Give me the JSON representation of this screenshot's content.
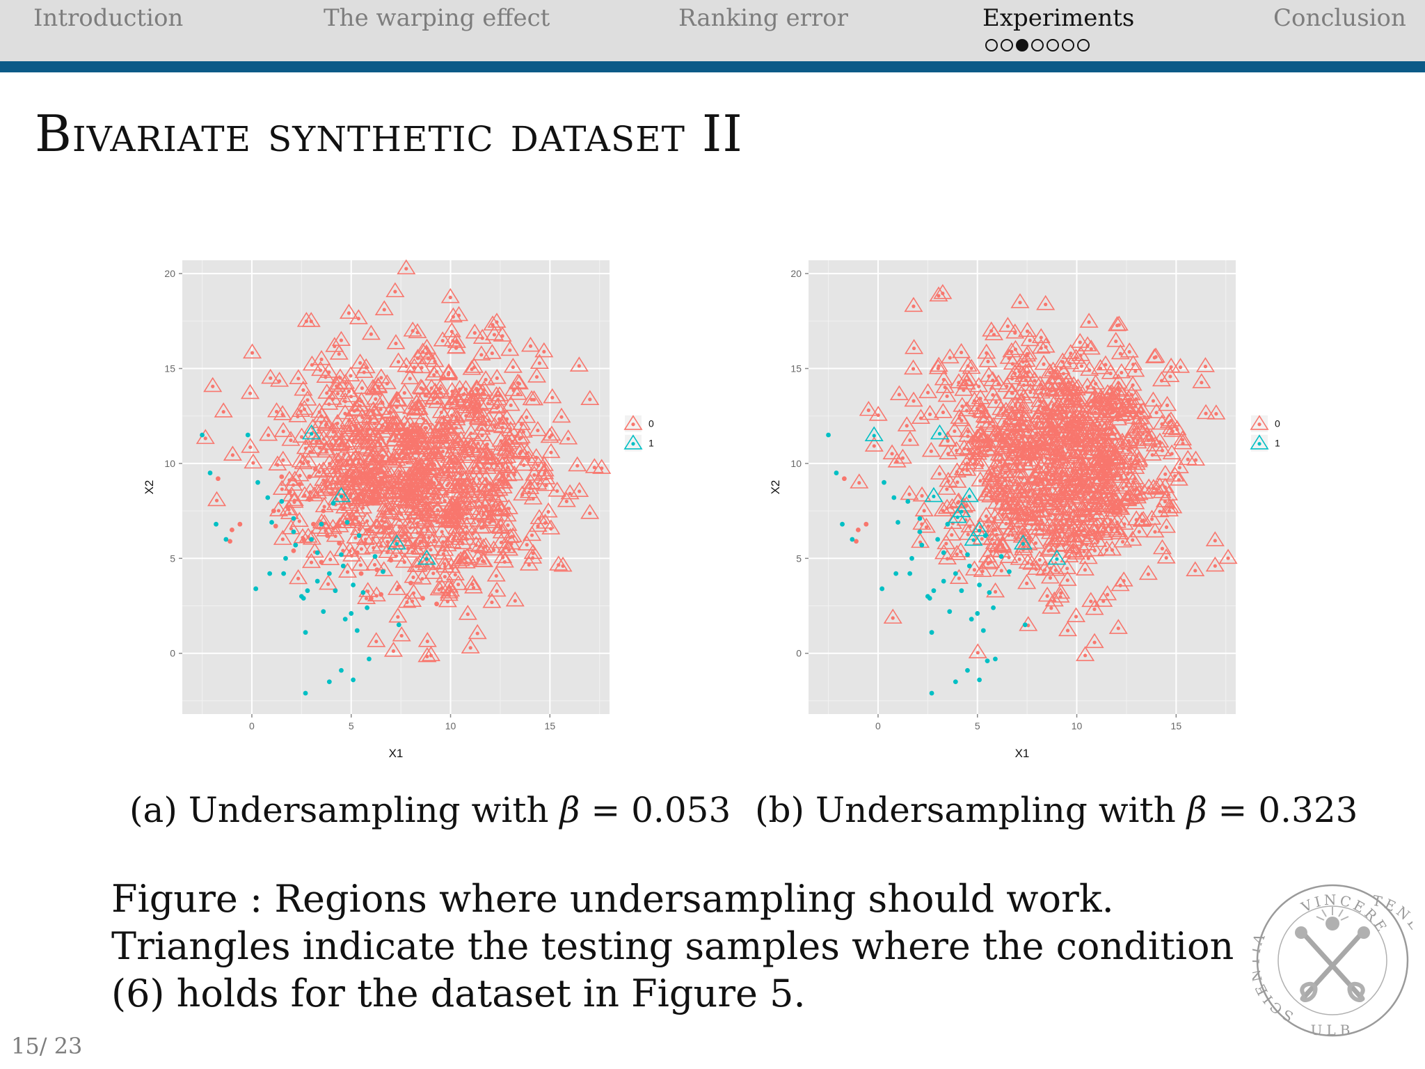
{
  "nav": {
    "items": [
      {
        "label": "Introduction"
      },
      {
        "label": "The warping effect"
      },
      {
        "label": "Ranking error"
      },
      {
        "label": "Experiments",
        "active": true
      },
      {
        "label": "Conclusion"
      }
    ],
    "progress": {
      "total": 7,
      "current": 3
    },
    "accent_color": "#0b5a87"
  },
  "slide": {
    "title": "Bivariate synthetic dataset II",
    "subfigure_a": {
      "prefix": "(a)",
      "text": "Undersampling with ",
      "symbol": "β",
      "value": " = 0.053"
    },
    "subfigure_b": {
      "prefix": "(b)",
      "text": "Undersampling with ",
      "symbol": "β",
      "value": " = 0.323"
    },
    "figure_caption": "Figure : Regions where undersampling should work. Triangles indicate the testing samples where the condition (6) holds for the dataset in Figure 5.",
    "page_number": "15/ 23"
  },
  "seal": {
    "text_top": "VINCERE",
    "text_right": "TENEBRAS",
    "text_left": "SCIENTIA",
    "text_bottom": "ULB"
  },
  "chart_data": [
    {
      "type": "scatter",
      "xlabel": "X1",
      "ylabel": "X2",
      "xlim": [
        -3.5,
        18
      ],
      "ylim": [
        -3.2,
        20.7
      ],
      "xticks": [
        0,
        5,
        10,
        15
      ],
      "yticks": [
        0,
        5,
        10,
        15,
        20
      ],
      "grid": true,
      "legend": "right",
      "legend_entries": [
        "0",
        "1"
      ],
      "colors": {
        "0": "#f8766d",
        "1": "#00bfc4"
      },
      "class0_center": [
        8.5,
        10
      ],
      "class0_spread": [
        3.3,
        3.2
      ],
      "class1_triangles": [
        [
          3,
          11.6
        ],
        [
          4.5,
          8.3
        ],
        [
          7.3,
          5.8
        ],
        [
          8.8,
          5
        ]
      ],
      "points_class1": [
        [
          -2.5,
          11.5
        ],
        [
          -2.1,
          9.5
        ],
        [
          -0.2,
          11.5
        ],
        [
          -1.8,
          6.8
        ],
        [
          -1.3,
          6
        ],
        [
          0.3,
          9
        ],
        [
          0.2,
          3.4
        ],
        [
          0.8,
          8.2
        ],
        [
          1,
          6.9
        ],
        [
          1.5,
          8
        ],
        [
          1.7,
          5
        ],
        [
          0.9,
          4.2
        ],
        [
          2.1,
          6.4
        ],
        [
          2.2,
          5.7
        ],
        [
          2.5,
          3
        ],
        [
          2.8,
          3.3
        ],
        [
          3,
          6
        ],
        [
          3.3,
          3.8
        ],
        [
          2.6,
          2.9
        ],
        [
          3.9,
          4.2
        ],
        [
          3.5,
          6.8
        ],
        [
          4.2,
          3.3
        ],
        [
          4.5,
          5.2
        ],
        [
          4.8,
          6.9
        ],
        [
          5.1,
          3.6
        ],
        [
          5.6,
          3.2
        ],
        [
          5.4,
          6.2
        ],
        [
          5,
          2.1
        ],
        [
          4.6,
          4.6
        ],
        [
          5.8,
          2.4
        ],
        [
          6.2,
          5.1
        ],
        [
          4.7,
          1.8
        ],
        [
          5.3,
          1.2
        ],
        [
          7.4,
          1.5
        ],
        [
          2.7,
          1.1
        ],
        [
          6.6,
          4.3
        ],
        [
          3.6,
          2.2
        ],
        [
          1.6,
          4.2
        ],
        [
          5.9,
          -0.3
        ],
        [
          4.5,
          -0.9
        ],
        [
          5.1,
          -1.4
        ],
        [
          3.9,
          -1.5
        ],
        [
          2.7,
          -2.1
        ],
        [
          3.3,
          5.3
        ],
        [
          2.1,
          7.1
        ],
        [
          4.1,
          7.9
        ]
      ],
      "points_class0_dots": [
        [
          -1.7,
          9.2
        ],
        [
          -1,
          6.5
        ],
        [
          -0.6,
          6.8
        ],
        [
          -1.1,
          5.9
        ],
        [
          1.2,
          6.7
        ],
        [
          1.8,
          7.7
        ],
        [
          1.5,
          9.3
        ],
        [
          2.4,
          8.9
        ],
        [
          2.9,
          8.1
        ],
        [
          3.1,
          6.8
        ],
        [
          3.6,
          7.5
        ],
        [
          2.1,
          5.4
        ],
        [
          3.5,
          4.8
        ],
        [
          4,
          8.4
        ],
        [
          3.8,
          6.2
        ],
        [
          5.2,
          7.1
        ],
        [
          5.7,
          5.8
        ],
        [
          5.9,
          6.5
        ],
        [
          6.3,
          4.4
        ],
        [
          6.1,
          7.9
        ],
        [
          7,
          4.9
        ],
        [
          7.4,
          3.5
        ],
        [
          6.9,
          6.6
        ],
        [
          5.5,
          4.2
        ],
        [
          8,
          3.7
        ],
        [
          8.6,
          2.9
        ],
        [
          9.3,
          2.6
        ],
        [
          8.2,
          5.7
        ],
        [
          4.4,
          5.8
        ],
        [
          2.6,
          6
        ],
        [
          1.1,
          7.5
        ],
        [
          3.2,
          9.7
        ],
        [
          4.8,
          9.3
        ],
        [
          6.5,
          3.1
        ],
        [
          7.7,
          6.3
        ],
        [
          6.7,
          8.3
        ],
        [
          2.9,
          9.3
        ],
        [
          3.7,
          9
        ],
        [
          4.3,
          6.7
        ],
        [
          5.3,
          5.3
        ],
        [
          6,
          2.9
        ],
        [
          1.9,
          8.5
        ]
      ]
    },
    {
      "type": "scatter",
      "xlabel": "X1",
      "ylabel": "X2",
      "xlim": [
        -3.5,
        18
      ],
      "ylim": [
        -3.2,
        20.7
      ],
      "xticks": [
        0,
        5,
        10,
        15
      ],
      "yticks": [
        0,
        5,
        10,
        15,
        20
      ],
      "grid": true,
      "legend": "right",
      "legend_entries": [
        "0",
        "1"
      ],
      "colors": {
        "0": "#f8766d",
        "1": "#00bfc4"
      },
      "class0_center": [
        9,
        10.1
      ],
      "class0_spread": [
        3.1,
        3.1
      ],
      "class1_triangles": [
        [
          -0.2,
          11.5
        ],
        [
          3.1,
          11.6
        ],
        [
          2.8,
          8.3
        ],
        [
          4.2,
          7.5
        ],
        [
          4,
          7.2
        ],
        [
          4.6,
          8.3
        ],
        [
          5.1,
          6.5
        ],
        [
          4.8,
          6
        ],
        [
          7.3,
          5.8
        ],
        [
          9,
          5
        ]
      ],
      "points_class1": [
        [
          -2.5,
          11.5
        ],
        [
          -2.1,
          9.5
        ],
        [
          0.3,
          9
        ],
        [
          -1.8,
          6.8
        ],
        [
          -1.3,
          6
        ],
        [
          0.2,
          3.4
        ],
        [
          0.8,
          8.2
        ],
        [
          1,
          6.9
        ],
        [
          1.5,
          8
        ],
        [
          1.7,
          5
        ],
        [
          0.9,
          4.2
        ],
        [
          2.1,
          6.4
        ],
        [
          2.2,
          5.7
        ],
        [
          2.5,
          3
        ],
        [
          2.8,
          3.3
        ],
        [
          3,
          6
        ],
        [
          3.3,
          3.8
        ],
        [
          2.6,
          2.9
        ],
        [
          3.9,
          4.2
        ],
        [
          3.5,
          6.8
        ],
        [
          4.2,
          3.3
        ],
        [
          4.5,
          5.2
        ],
        [
          5.1,
          3.6
        ],
        [
          5.6,
          3.2
        ],
        [
          5.4,
          6.2
        ],
        [
          5,
          2.1
        ],
        [
          4.6,
          4.6
        ],
        [
          5.8,
          2.4
        ],
        [
          6.2,
          5.1
        ],
        [
          4.7,
          1.8
        ],
        [
          5.3,
          1.2
        ],
        [
          7.4,
          1.5
        ],
        [
          2.7,
          1.1
        ],
        [
          6.6,
          4.3
        ],
        [
          3.6,
          2.2
        ],
        [
          1.6,
          4.2
        ],
        [
          5.9,
          -0.3
        ],
        [
          4.5,
          -0.9
        ],
        [
          5.1,
          -1.4
        ],
        [
          3.9,
          -1.5
        ],
        [
          2.7,
          -2.1
        ],
        [
          3.3,
          5.3
        ],
        [
          2.1,
          7.1
        ],
        [
          5.5,
          -0.4
        ]
      ],
      "points_class0_dots": [
        [
          -1.7,
          9.2
        ],
        [
          -1,
          6.5
        ],
        [
          -0.6,
          6.8
        ],
        [
          -1.1,
          5.9
        ]
      ]
    }
  ]
}
